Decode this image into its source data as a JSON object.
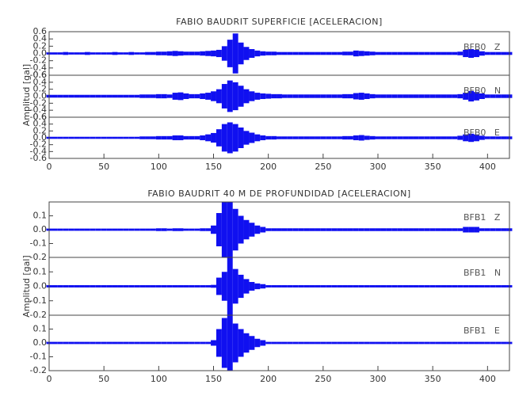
{
  "chart_data": [
    {
      "type": "seismogram",
      "title": "FABIO BAUDRIT SUPERFICIE [ACELERACION]",
      "ylabel": "Amplitud [gal]",
      "xlim": [
        0,
        420
      ],
      "xticks": [
        0,
        50,
        100,
        150,
        200,
        250,
        300,
        350,
        400
      ],
      "ylim": [
        -0.6,
        0.6
      ],
      "yticks": [
        -0.6,
        -0.4,
        -0.2,
        {
          "value": 0,
          "label": "0.0"
        },
        0.2,
        0.4,
        0.6
      ],
      "x": [
        0,
        5,
        10,
        15,
        20,
        25,
        30,
        35,
        40,
        45,
        50,
        55,
        60,
        65,
        70,
        75,
        80,
        85,
        90,
        95,
        100,
        105,
        110,
        115,
        120,
        125,
        130,
        135,
        140,
        145,
        150,
        155,
        160,
        165,
        170,
        175,
        180,
        185,
        190,
        195,
        200,
        205,
        210,
        215,
        220,
        225,
        230,
        235,
        240,
        245,
        250,
        255,
        260,
        265,
        270,
        275,
        280,
        285,
        290,
        295,
        300,
        305,
        310,
        315,
        320,
        325,
        330,
        335,
        340,
        345,
        350,
        355,
        360,
        365,
        370,
        375,
        380,
        385,
        390,
        395,
        400,
        405,
        410,
        415,
        420
      ],
      "series": [
        {
          "name": "BFB0   Z",
          "color": "#1010f0",
          "values": [
            0.03,
            0.03,
            0.03,
            0.04,
            0.03,
            0.03,
            0.03,
            0.04,
            0.03,
            0.03,
            0.03,
            0.03,
            0.04,
            0.03,
            0.03,
            0.04,
            0.03,
            0.03,
            0.04,
            0.04,
            0.05,
            0.05,
            0.06,
            0.07,
            0.06,
            0.05,
            0.05,
            0.05,
            0.06,
            0.07,
            0.08,
            0.1,
            0.2,
            0.38,
            0.55,
            0.3,
            0.18,
            0.12,
            0.08,
            0.06,
            0.05,
            0.05,
            0.04,
            0.04,
            0.04,
            0.04,
            0.04,
            0.04,
            0.04,
            0.04,
            0.04,
            0.04,
            0.04,
            0.04,
            0.05,
            0.05,
            0.08,
            0.07,
            0.06,
            0.05,
            0.04,
            0.04,
            0.04,
            0.04,
            0.04,
            0.04,
            0.04,
            0.04,
            0.04,
            0.04,
            0.04,
            0.04,
            0.04,
            0.04,
            0.04,
            0.05,
            0.1,
            0.12,
            0.1,
            0.06,
            0.04,
            0.04,
            0.04,
            0.04,
            0.04
          ]
        },
        {
          "name": "BFB0   N",
          "color": "#1010f0",
          "values": [
            0.04,
            0.04,
            0.04,
            0.04,
            0.04,
            0.04,
            0.04,
            0.04,
            0.04,
            0.04,
            0.04,
            0.04,
            0.04,
            0.04,
            0.04,
            0.04,
            0.04,
            0.05,
            0.05,
            0.05,
            0.06,
            0.06,
            0.05,
            0.1,
            0.11,
            0.08,
            0.06,
            0.06,
            0.08,
            0.1,
            0.14,
            0.2,
            0.35,
            0.45,
            0.4,
            0.3,
            0.2,
            0.14,
            0.1,
            0.08,
            0.07,
            0.06,
            0.06,
            0.05,
            0.05,
            0.05,
            0.05,
            0.05,
            0.05,
            0.05,
            0.05,
            0.05,
            0.05,
            0.05,
            0.06,
            0.06,
            0.09,
            0.1,
            0.08,
            0.06,
            0.05,
            0.05,
            0.05,
            0.05,
            0.05,
            0.05,
            0.05,
            0.05,
            0.05,
            0.05,
            0.05,
            0.05,
            0.05,
            0.05,
            0.05,
            0.06,
            0.1,
            0.15,
            0.12,
            0.08,
            0.05,
            0.05,
            0.05,
            0.05,
            0.05
          ]
        },
        {
          "name": "BFB0   E",
          "color": "#1010f0",
          "values": [
            0.03,
            0.03,
            0.03,
            0.03,
            0.03,
            0.03,
            0.03,
            0.03,
            0.03,
            0.03,
            0.03,
            0.03,
            0.03,
            0.03,
            0.03,
            0.03,
            0.03,
            0.04,
            0.04,
            0.04,
            0.05,
            0.05,
            0.05,
            0.07,
            0.07,
            0.05,
            0.05,
            0.05,
            0.07,
            0.1,
            0.14,
            0.25,
            0.4,
            0.45,
            0.4,
            0.3,
            0.2,
            0.15,
            0.1,
            0.07,
            0.05,
            0.05,
            0.04,
            0.04,
            0.04,
            0.04,
            0.04,
            0.04,
            0.04,
            0.04,
            0.04,
            0.04,
            0.04,
            0.04,
            0.05,
            0.05,
            0.07,
            0.08,
            0.06,
            0.05,
            0.04,
            0.04,
            0.04,
            0.04,
            0.04,
            0.04,
            0.04,
            0.04,
            0.04,
            0.04,
            0.04,
            0.04,
            0.04,
            0.04,
            0.04,
            0.06,
            0.1,
            0.12,
            0.1,
            0.06,
            0.04,
            0.04,
            0.04,
            0.04,
            0.04
          ]
        }
      ]
    },
    {
      "type": "seismogram",
      "title": "FABIO BAUDRIT 40 M DE PROFUNDIDAD [ACELERACION]",
      "ylabel": "Amplitud [gal]",
      "xlim": [
        0,
        420
      ],
      "xticks": [
        0,
        50,
        100,
        150,
        200,
        250,
        300,
        350,
        400
      ],
      "ylim": [
        -0.2,
        0.2
      ],
      "yticks": [
        -0.2,
        -0.1,
        {
          "value": 0,
          "label": "0.0"
        },
        0.1
      ],
      "x": [
        0,
        5,
        10,
        15,
        20,
        25,
        30,
        35,
        40,
        45,
        50,
        55,
        60,
        65,
        70,
        75,
        80,
        85,
        90,
        95,
        100,
        105,
        110,
        115,
        120,
        125,
        130,
        135,
        140,
        145,
        150,
        155,
        160,
        165,
        170,
        175,
        180,
        185,
        190,
        195,
        200,
        205,
        210,
        215,
        220,
        225,
        230,
        235,
        240,
        245,
        250,
        255,
        260,
        265,
        270,
        275,
        280,
        285,
        290,
        295,
        300,
        305,
        310,
        315,
        320,
        325,
        330,
        335,
        340,
        345,
        350,
        355,
        360,
        365,
        370,
        375,
        380,
        385,
        390,
        395,
        400,
        405,
        410,
        415,
        420
      ],
      "series": [
        {
          "name": "BFB1   Z",
          "color": "#1010f0",
          "values": [
            0.008,
            0.008,
            0.008,
            0.008,
            0.008,
            0.008,
            0.008,
            0.008,
            0.008,
            0.008,
            0.008,
            0.008,
            0.008,
            0.008,
            0.008,
            0.008,
            0.008,
            0.008,
            0.008,
            0.008,
            0.01,
            0.01,
            0.008,
            0.01,
            0.01,
            0.008,
            0.008,
            0.008,
            0.01,
            0.01,
            0.03,
            0.12,
            0.2,
            0.2,
            0.15,
            0.1,
            0.07,
            0.05,
            0.03,
            0.02,
            0.01,
            0.01,
            0.01,
            0.01,
            0.01,
            0.01,
            0.01,
            0.01,
            0.01,
            0.01,
            0.01,
            0.01,
            0.01,
            0.01,
            0.01,
            0.01,
            0.01,
            0.01,
            0.01,
            0.01,
            0.01,
            0.01,
            0.01,
            0.01,
            0.01,
            0.01,
            0.01,
            0.01,
            0.01,
            0.01,
            0.01,
            0.01,
            0.01,
            0.01,
            0.01,
            0.01,
            0.02,
            0.02,
            0.02,
            0.01,
            0.01,
            0.01,
            0.01,
            0.01,
            0.01
          ]
        },
        {
          "name": "BFB1   N",
          "color": "#1010f0",
          "values": [
            0.008,
            0.008,
            0.008,
            0.008,
            0.008,
            0.008,
            0.008,
            0.008,
            0.008,
            0.008,
            0.008,
            0.008,
            0.008,
            0.008,
            0.008,
            0.008,
            0.008,
            0.008,
            0.008,
            0.008,
            0.008,
            0.008,
            0.008,
            0.008,
            0.008,
            0.008,
            0.008,
            0.008,
            0.008,
            0.008,
            0.01,
            0.06,
            0.1,
            0.2,
            0.12,
            0.08,
            0.05,
            0.03,
            0.02,
            0.015,
            0.008,
            0.008,
            0.008,
            0.008,
            0.008,
            0.008,
            0.008,
            0.008,
            0.008,
            0.008,
            0.008,
            0.008,
            0.008,
            0.008,
            0.008,
            0.008,
            0.008,
            0.008,
            0.008,
            0.008,
            0.008,
            0.008,
            0.008,
            0.008,
            0.008,
            0.008,
            0.008,
            0.008,
            0.008,
            0.008,
            0.008,
            0.008,
            0.008,
            0.008,
            0.008,
            0.008,
            0.008,
            0.008,
            0.008,
            0.008,
            0.008,
            0.008,
            0.008,
            0.008,
            0.008
          ]
        },
        {
          "name": "BFB1   E",
          "color": "#1010f0",
          "values": [
            0.008,
            0.008,
            0.008,
            0.008,
            0.008,
            0.008,
            0.008,
            0.008,
            0.008,
            0.008,
            0.008,
            0.008,
            0.008,
            0.008,
            0.008,
            0.008,
            0.008,
            0.008,
            0.008,
            0.008,
            0.008,
            0.008,
            0.008,
            0.008,
            0.008,
            0.008,
            0.008,
            0.008,
            0.008,
            0.008,
            0.02,
            0.1,
            0.18,
            0.2,
            0.14,
            0.1,
            0.07,
            0.05,
            0.03,
            0.02,
            0.008,
            0.008,
            0.008,
            0.008,
            0.008,
            0.008,
            0.008,
            0.008,
            0.008,
            0.008,
            0.008,
            0.008,
            0.008,
            0.008,
            0.008,
            0.008,
            0.008,
            0.008,
            0.008,
            0.008,
            0.008,
            0.008,
            0.008,
            0.008,
            0.008,
            0.008,
            0.008,
            0.008,
            0.008,
            0.008,
            0.008,
            0.008,
            0.008,
            0.008,
            0.008,
            0.008,
            0.008,
            0.008,
            0.008,
            0.008,
            0.008,
            0.008,
            0.008,
            0.008,
            0.008
          ]
        }
      ]
    }
  ]
}
